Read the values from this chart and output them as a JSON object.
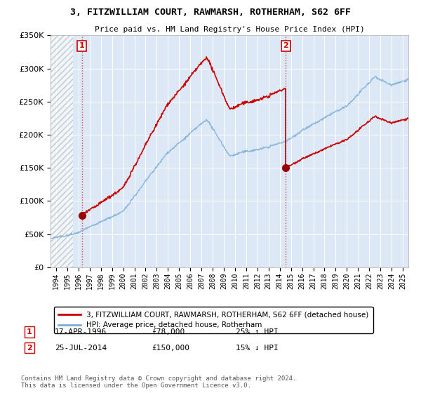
{
  "title": "3, FITZWILLIAM COURT, RAWMARSH, ROTHERHAM, S62 6FF",
  "subtitle": "Price paid vs. HM Land Registry's House Price Index (HPI)",
  "legend_label_red": "3, FITZWILLIAM COURT, RAWMARSH, ROTHERHAM, S62 6FF (detached house)",
  "legend_label_blue": "HPI: Average price, detached house, Rotherham",
  "sale1_date_label": "17-APR-1996",
  "sale1_price": 78000,
  "sale1_price_label": "£78,000",
  "sale1_hpi_label": "25% ↑ HPI",
  "sale2_date_label": "25-JUL-2014",
  "sale2_price": 150000,
  "sale2_price_label": "£150,000",
  "sale2_hpi_label": "15% ↓ HPI",
  "footer": "Contains HM Land Registry data © Crown copyright and database right 2024.\nThis data is licensed under the Open Government Licence v3.0.",
  "sale1_x": 1996.3,
  "sale2_x": 2014.55,
  "ylim": [
    0,
    350000
  ],
  "xlim_start": 1993.5,
  "xlim_end": 2025.5,
  "plot_bg": "#dce8f5",
  "red_color": "#cc0000",
  "blue_color": "#7aaed6"
}
